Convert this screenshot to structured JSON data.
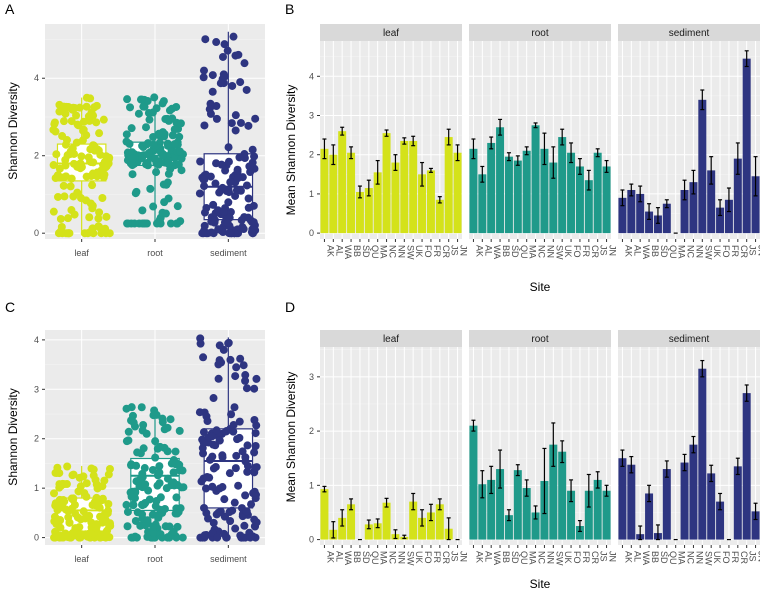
{
  "colors": {
    "leaf": "#d4e21a",
    "root": "#1f9a8a",
    "sediment": "#2e3581"
  },
  "sites": [
    "AK",
    "AL",
    "WA",
    "BB",
    "SD",
    "QU",
    "MA",
    "NC",
    "NN",
    "SW",
    "UK",
    "FO",
    "FR",
    "CR",
    "JS",
    "JN"
  ],
  "chart_data": [
    {
      "id": "A",
      "type": "box",
      "panel_label": "A",
      "ylabel": "Shannon Diversity",
      "ylim": [
        -0.15,
        5.4
      ],
      "yticks": [
        0,
        2,
        4
      ],
      "categories": [
        "leaf",
        "root",
        "sediment"
      ],
      "boxes": [
        {
          "category": "leaf",
          "min": 0.0,
          "q1": 1.35,
          "median": 1.8,
          "q3": 2.3,
          "max": 3.5
        },
        {
          "category": "root",
          "min": 0.25,
          "q1": 1.75,
          "median": 2.0,
          "q3": 2.35,
          "max": 3.55
        },
        {
          "category": "sediment",
          "min": 0.0,
          "q1": 0.35,
          "median": 1.2,
          "q3": 2.05,
          "max": 5.2
        }
      ]
    },
    {
      "id": "B",
      "type": "bar",
      "panel_label": "B",
      "ylabel": "Mean Shannon Diversity",
      "xlabel": "Site",
      "ylim": [
        -0.15,
        4.9
      ],
      "yticks": [
        0,
        1,
        2,
        3,
        4
      ],
      "facets": [
        "leaf",
        "root",
        "sediment"
      ],
      "series": [
        {
          "name": "leaf",
          "values": [
            2.15,
            2.0,
            2.6,
            2.05,
            1.05,
            1.15,
            1.55,
            2.55,
            1.8,
            2.35,
            2.35,
            1.5,
            1.6,
            0.85,
            2.45,
            2.05
          ],
          "errors": [
            0.25,
            0.25,
            0.1,
            0.15,
            0.15,
            0.2,
            0.3,
            0.08,
            0.2,
            0.08,
            0.12,
            0.3,
            0.05,
            0.08,
            0.2,
            0.2
          ]
        },
        {
          "name": "root",
          "values": [
            2.15,
            1.5,
            2.3,
            2.7,
            1.95,
            1.85,
            2.1,
            2.75,
            2.15,
            1.8,
            2.45,
            2.05,
            1.7,
            1.35,
            2.05,
            1.7
          ],
          "errors": [
            0.25,
            0.2,
            0.15,
            0.2,
            0.1,
            0.12,
            0.1,
            0.06,
            0.4,
            0.4,
            0.2,
            0.25,
            0.2,
            0.25,
            0.1,
            0.15
          ]
        },
        {
          "name": "sediment",
          "values": [
            0.9,
            1.1,
            1.0,
            0.55,
            0.45,
            0.75,
            0.0,
            1.1,
            1.3,
            3.4,
            1.6,
            0.65,
            0.85,
            1.9,
            4.45,
            1.45
          ],
          "errors": [
            0.2,
            0.15,
            0.2,
            0.2,
            0.2,
            0.1,
            0.0,
            0.25,
            0.3,
            0.25,
            0.35,
            0.2,
            0.3,
            0.4,
            0.2,
            0.5
          ]
        }
      ]
    },
    {
      "id": "C",
      "type": "box",
      "panel_label": "C",
      "ylabel": "Shannon Diversity",
      "ylim": [
        -0.15,
        4.2
      ],
      "yticks": [
        0,
        1,
        2,
        3,
        4
      ],
      "categories": [
        "leaf",
        "root",
        "sediment"
      ],
      "boxes": [
        {
          "category": "leaf",
          "min": 0.0,
          "q1": 0.1,
          "median": 0.55,
          "q3": 0.8,
          "max": 1.45
        },
        {
          "category": "root",
          "min": 0.0,
          "q1": 0.55,
          "median": 1.25,
          "q3": 1.6,
          "max": 2.65
        },
        {
          "category": "sediment",
          "min": 0.0,
          "q1": 0.6,
          "median": 1.55,
          "q3": 2.2,
          "max": 4.05
        }
      ]
    },
    {
      "id": "D",
      "type": "bar",
      "panel_label": "D",
      "ylabel": "Mean Shannon Diversity",
      "xlabel": "Site",
      "ylim": [
        -0.1,
        3.55
      ],
      "yticks": [
        0,
        1,
        2,
        3
      ],
      "facets": [
        "leaf",
        "root",
        "sediment"
      ],
      "series": [
        {
          "name": "leaf",
          "values": [
            0.93,
            0.18,
            0.4,
            0.65,
            0.0,
            0.28,
            0.3,
            0.68,
            0.1,
            0.05,
            0.7,
            0.4,
            0.5,
            0.65,
            0.2,
            0.0
          ],
          "errors": [
            0.05,
            0.15,
            0.15,
            0.1,
            0.0,
            0.08,
            0.08,
            0.08,
            0.08,
            0.03,
            0.15,
            0.15,
            0.15,
            0.1,
            0.2,
            0.0
          ]
        },
        {
          "name": "root",
          "values": [
            2.1,
            1.02,
            1.1,
            1.3,
            0.45,
            1.28,
            0.95,
            0.5,
            1.08,
            1.75,
            1.62,
            0.9,
            0.25,
            0.9,
            1.1,
            0.9
          ],
          "errors": [
            0.1,
            0.25,
            0.25,
            0.35,
            0.1,
            0.1,
            0.15,
            0.12,
            0.6,
            0.4,
            0.2,
            0.2,
            0.1,
            0.3,
            0.15,
            0.1
          ]
        },
        {
          "name": "sediment",
          "values": [
            1.5,
            1.38,
            0.1,
            0.85,
            0.12,
            1.3,
            0.0,
            1.42,
            1.75,
            3.15,
            1.22,
            0.7,
            0.0,
            1.35,
            2.7,
            0.52
          ]
        }
      ]
    }
  ]
}
